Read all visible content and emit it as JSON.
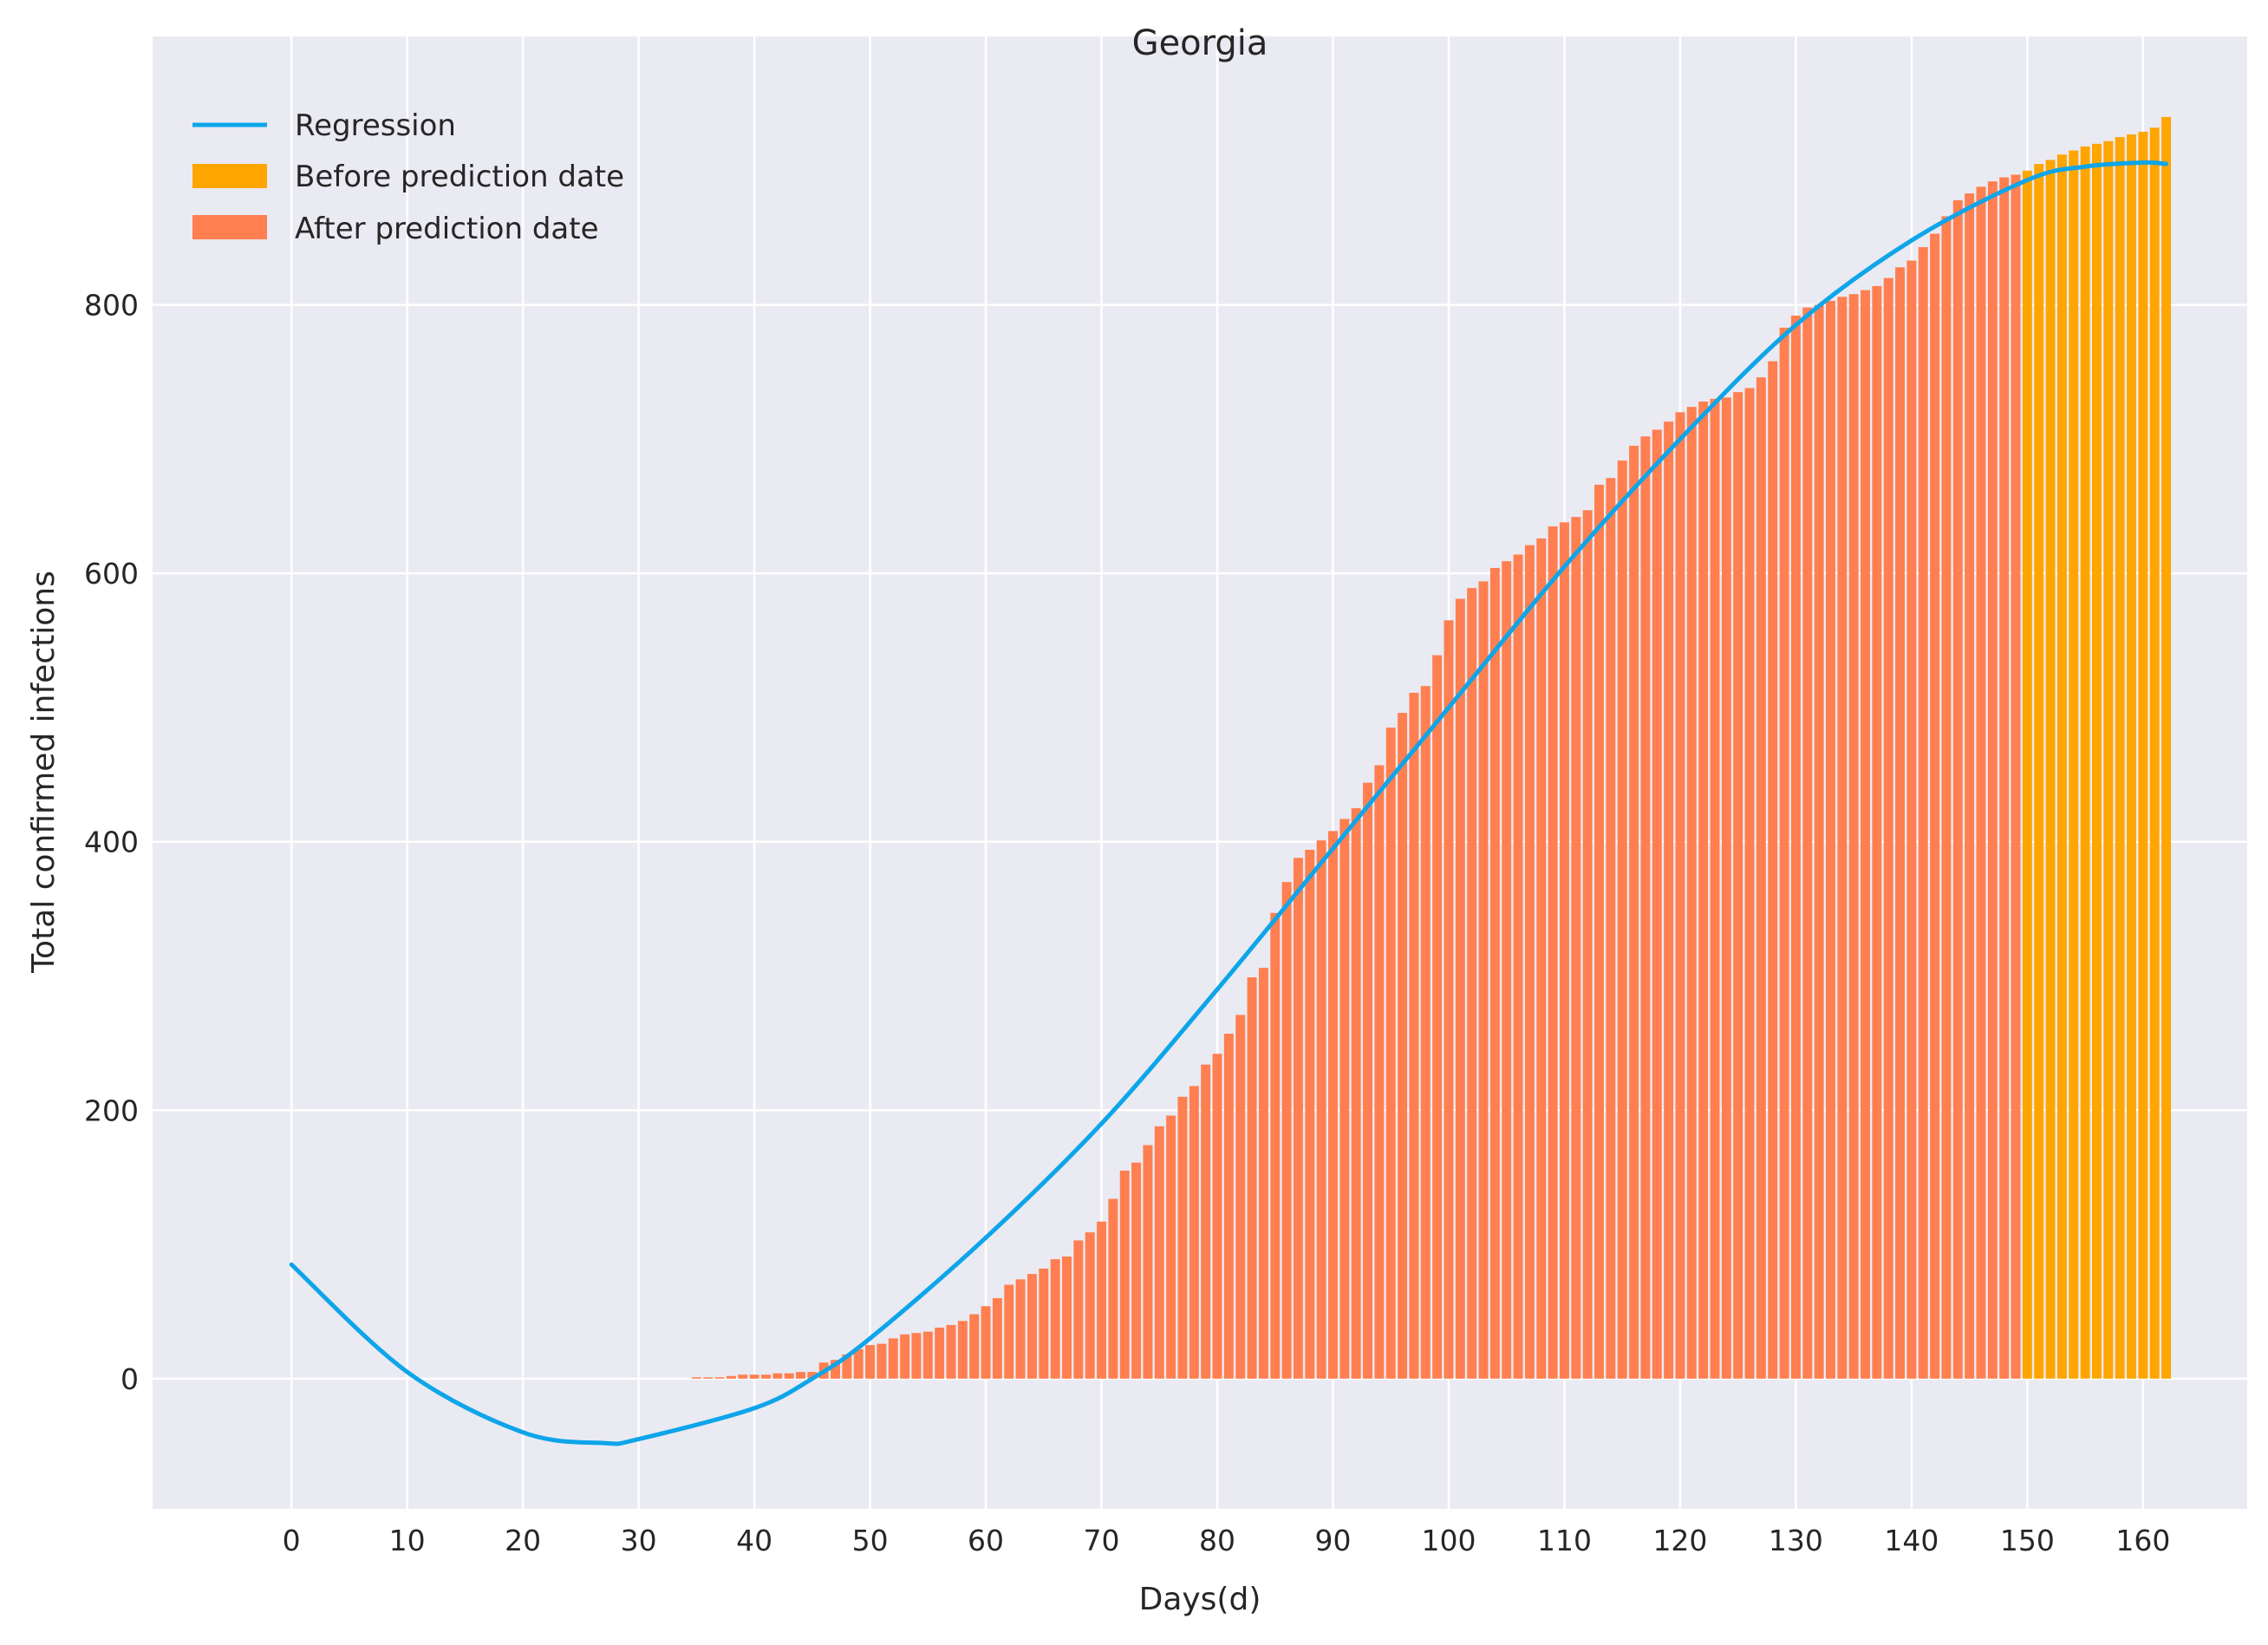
{
  "chart_data": {
    "type": "bar",
    "title": "Georgia",
    "xlabel": "Days(d)",
    "ylabel": "Total confirmed infections",
    "xlim": [
      -12,
      169
    ],
    "ylim": [
      -97,
      1000
    ],
    "x_ticks": [
      0,
      10,
      20,
      30,
      40,
      50,
      60,
      70,
      80,
      90,
      100,
      110,
      120,
      130,
      140,
      150,
      160
    ],
    "y_ticks": [
      0,
      200,
      400,
      600,
      800
    ],
    "grid": true,
    "legend_position": "top-left",
    "colors": {
      "background": "#eaeaf2",
      "grid": "#ffffff",
      "regression": "#0ea5e9",
      "before": "#ffa500",
      "after": "#ff7f50"
    },
    "legend": {
      "regression": "Regression",
      "before": "Before prediction date",
      "after": "After prediction date"
    },
    "series": [
      {
        "name": "After prediction date",
        "kind": "bar",
        "x_start": 35,
        "values": [
          1,
          1,
          1,
          2,
          3,
          3,
          3,
          4,
          4,
          5,
          5,
          12,
          14,
          18,
          22,
          25,
          26,
          30,
          33,
          34,
          35,
          38,
          40,
          43,
          48,
          54,
          60,
          70,
          74,
          78,
          82,
          89,
          91,
          103,
          109,
          117,
          134,
          155,
          161,
          174,
          188,
          196,
          210,
          218,
          234,
          242,
          257,
          271,
          299,
          306,
          347,
          370,
          388,
          394,
          401,
          408,
          417,
          425,
          444,
          457,
          485,
          496,
          511,
          516,
          539,
          565,
          581,
          589,
          594,
          604,
          609,
          614,
          621,
          626,
          635,
          638,
          642,
          647,
          666,
          671,
          684,
          695,
          702,
          707,
          713,
          720,
          724,
          728,
          730,
          731,
          735,
          738,
          746,
          758,
          783,
          792,
          798,
          800,
          803,
          806,
          808,
          811,
          814,
          820,
          828,
          833,
          843,
          853,
          866,
          878,
          883,
          888,
          892,
          895,
          897
        ]
      },
      {
        "name": "Before prediction date",
        "kind": "bar",
        "x_start": 150,
        "values": [
          900,
          905,
          908,
          912,
          915,
          918,
          920,
          922,
          925,
          927,
          929,
          932,
          940
        ]
      },
      {
        "name": "Regression",
        "kind": "line",
        "x": [
          0,
          10,
          20,
          27,
          30,
          40,
          45,
          50,
          60,
          70,
          80,
          90,
          100,
          110,
          120,
          130,
          140,
          150,
          155,
          160,
          162
        ],
        "y": [
          85,
          5,
          -40,
          -48,
          -45,
          -22,
          0,
          30,
          105,
          190,
          290,
          395,
          500,
          605,
          700,
          785,
          848,
          893,
          903,
          906,
          905
        ]
      }
    ]
  }
}
